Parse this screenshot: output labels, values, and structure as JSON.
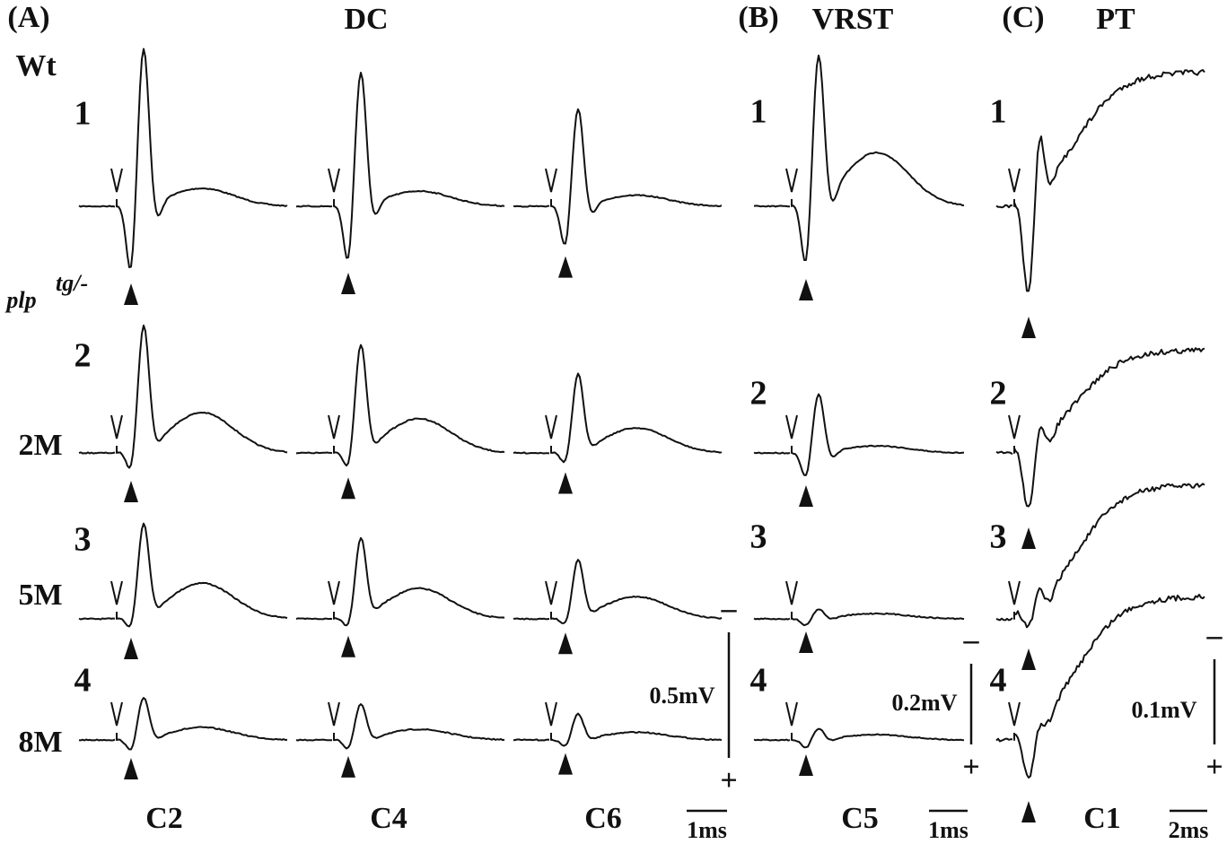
{
  "header": {
    "control": "Wt",
    "mutant": "plp",
    "mutant_superscript": "tg/-",
    "ages": [
      "2M",
      "5M",
      "8M"
    ]
  },
  "panels": [
    {
      "label": "(A)",
      "title": "DC",
      "row_numbers": [
        "1",
        "2",
        "3",
        "4"
      ],
      "columns": [
        "C2",
        "C4",
        "C6"
      ],
      "scale": {
        "amplitude": "0.5mV",
        "time": "1ms",
        "minus": "–",
        "plus": "+"
      }
    },
    {
      "label": "(B)",
      "title": "VRST",
      "row_numbers": [
        "1",
        "2",
        "3",
        "4"
      ],
      "columns": [
        "C5"
      ],
      "scale": {
        "amplitude": "0.2mV",
        "time": "1ms",
        "minus": "–",
        "plus": "+"
      }
    },
    {
      "label": "(C)",
      "title": "PT",
      "row_numbers": [
        "1",
        "2",
        "3",
        "4"
      ],
      "columns": [
        "C1"
      ],
      "scale": {
        "amplitude": "0.1mV",
        "time": "2ms",
        "minus": "–",
        "plus": "+"
      }
    }
  ]
}
